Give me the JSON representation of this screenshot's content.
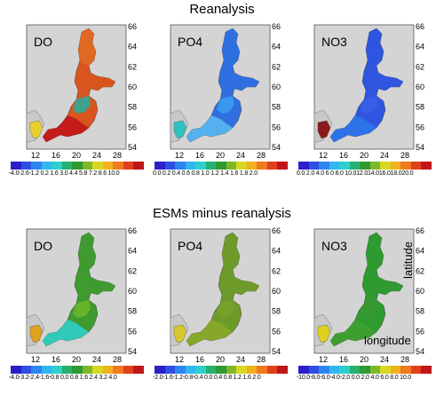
{
  "headings": {
    "top": "Reanalysis",
    "bottom": "ESMs minus reanalysis"
  },
  "lat_ticks": [
    "66",
    "64",
    "62",
    "60",
    "58",
    "56",
    "54"
  ],
  "lon_ticks": [
    "12",
    "16",
    "20",
    "24",
    "28"
  ],
  "axis_words": {
    "lat": "latitude",
    "lon": "longitude"
  },
  "panels": [
    {
      "label": "DO",
      "colorbar_labels": "-4.0-2.6-1.2 0.2  1.6  3.0  4.4  5.8  7.2  8.6 10.0",
      "colorbar": [
        "#2b1fc9",
        "#2f4fe0",
        "#2f85f0",
        "#33b6f0",
        "#2dd0c8",
        "#26b070",
        "#2f9a30",
        "#7cb82a",
        "#d8d820",
        "#f0b020",
        "#f07a20",
        "#e0401c",
        "#c0161a"
      ]
    },
    {
      "label": "PO4",
      "colorbar_labels": "0.0  0.2  0.4  0.6  0.8  1.0  1.2  1.4  1.6  1.8  2.0",
      "colorbar": [
        "#2b1fc9",
        "#2f4fe0",
        "#2f85f0",
        "#33b6f0",
        "#2dd0c8",
        "#26b070",
        "#2f9a30",
        "#7cb82a",
        "#d8d820",
        "#f0b020",
        "#f07a20",
        "#e0401c",
        "#c0161a"
      ]
    },
    {
      "label": "NO3",
      "colorbar_labels": "0.0  2.0  4.0  6.0  8.0 10.012.014.016.018.020.0",
      "colorbar": [
        "#2b1fc9",
        "#2f4fe0",
        "#2f85f0",
        "#33b6f0",
        "#2dd0c8",
        "#26b070",
        "#2f9a30",
        "#7cb82a",
        "#d8d820",
        "#f0b020",
        "#f07a20",
        "#e0401c",
        "#c0161a"
      ]
    },
    {
      "label": "DO",
      "colorbar_labels": "-4.0-3.2-2.4-1.6-0.8 0.0  0.8  1.6  2.4  3.2  4.0",
      "colorbar": [
        "#2b1fc9",
        "#2f4fe0",
        "#2f85f0",
        "#33b6f0",
        "#2dd0c8",
        "#26b070",
        "#2f9a30",
        "#7cb82a",
        "#d8d820",
        "#f0b020",
        "#f07a20",
        "#e0401c",
        "#c0161a"
      ]
    },
    {
      "label": "PO4",
      "colorbar_labels": "-2.0-1.6-1.2-0.8-0.4 0.0  0.4  0.8  1.2  1.6  2.0",
      "colorbar": [
        "#2b1fc9",
        "#2f4fe0",
        "#2f85f0",
        "#33b6f0",
        "#2dd0c8",
        "#26b070",
        "#2f9a30",
        "#7cb82a",
        "#d8d820",
        "#f0b020",
        "#f07a20",
        "#e0401c",
        "#c0161a"
      ]
    },
    {
      "label": "NO3",
      "colorbar_labels": "-10.0-8.0-6.0-4.0-2.0 0.0 2.0 4.0 6.0 8.0 10.0",
      "colorbar": [
        "#2b1fc9",
        "#2f4fe0",
        "#2f85f0",
        "#33b6f0",
        "#2dd0c8",
        "#26b070",
        "#2f9a30",
        "#7cb82a",
        "#d8d820",
        "#f0b020",
        "#f07a20",
        "#e0401c",
        "#c0161a"
      ]
    }
  ],
  "fills": {
    "top": {
      "main": "#d9541e",
      "gulf": "#e06a22",
      "south": "#c0161a",
      "accent": "#23b0a0",
      "kattegat": "#e8d030"
    },
    "top_po4": {
      "main": "#2f6fe0",
      "gulf": "#2f6fe0",
      "south": "#5ab8f0",
      "accent": "#3a9ff0",
      "kattegat": "#30c0c0"
    },
    "top_no3": {
      "main": "#2f55e0",
      "gulf": "#2f55e0",
      "south": "#2f75ea",
      "accent": "#3a5fe8",
      "kattegat": "#8a1a1a"
    },
    "bot_do": {
      "main": "#3f9a30",
      "gulf": "#3f9a30",
      "south": "#2dd0c8",
      "accent": "#6fb82a",
      "kattegat": "#e0a020"
    },
    "bot_po4": {
      "main": "#6e9a2a",
      "gulf": "#6e9a2a",
      "south": "#8aa82a",
      "accent": "#7aa22a",
      "kattegat": "#d8c830"
    },
    "bot_no3": {
      "main": "#2f9a30",
      "gulf": "#2f9a30",
      "south": "#3fa030",
      "accent": "#3a9830",
      "kattegat": "#e0d020"
    },
    "land": "#c8c8c8",
    "bg": "#d4d4d4"
  }
}
